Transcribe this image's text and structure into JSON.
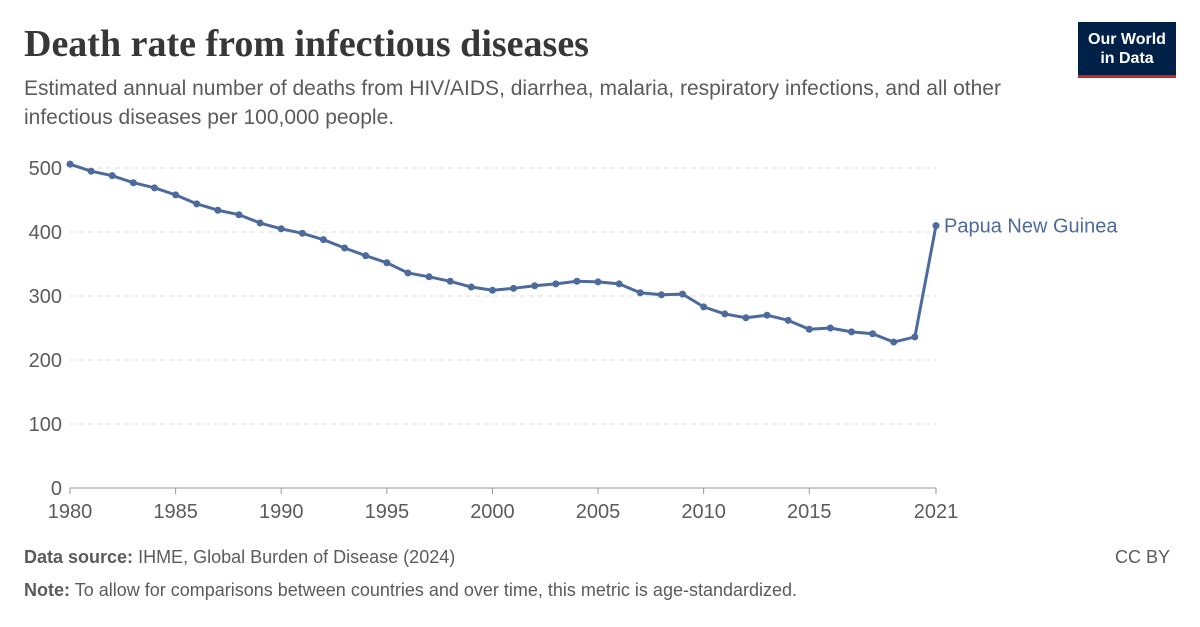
{
  "chart_data": {
    "type": "line",
    "title": "Death rate from infectious diseases",
    "subtitle": "Estimated annual number of deaths from HIV/AIDS, diarrhea, malaria, respiratory infections, and all other infectious diseases per 100,000 people.",
    "x": [
      1980,
      1981,
      1982,
      1983,
      1984,
      1985,
      1986,
      1987,
      1988,
      1989,
      1990,
      1991,
      1992,
      1993,
      1994,
      1995,
      1996,
      1997,
      1998,
      1999,
      2000,
      2001,
      2002,
      2003,
      2004,
      2005,
      2006,
      2007,
      2008,
      2009,
      2010,
      2011,
      2012,
      2013,
      2014,
      2015,
      2016,
      2017,
      2018,
      2019,
      2020,
      2021
    ],
    "series": [
      {
        "name": "Papua New Guinea",
        "color": "#4c6a9c",
        "values": [
          506,
          495,
          488,
          477,
          469,
          458,
          444,
          434,
          427,
          414,
          405,
          398,
          388,
          375,
          363,
          352,
          336,
          330,
          323,
          314,
          309,
          312,
          316,
          319,
          323,
          322,
          319,
          305,
          302,
          303,
          283,
          272,
          266,
          270,
          262,
          248,
          250,
          244,
          241,
          228,
          236,
          410
        ]
      }
    ],
    "xlim": [
      1980,
      2021
    ],
    "xticks": [
      1980,
      1985,
      1990,
      1995,
      2000,
      2005,
      2010,
      2015,
      2021
    ],
    "ylim": [
      0,
      500
    ],
    "yticks": [
      0,
      100,
      200,
      300,
      400,
      500
    ],
    "grid": true,
    "source_label": "Data source:",
    "source": "IHME, Global Burden of Disease (2024)",
    "note_label": "Note:",
    "note": "To allow for comparisons between countries and over time, this metric is age-standardized.",
    "license": "CC BY",
    "logo": [
      "Our World",
      "in Data"
    ]
  }
}
